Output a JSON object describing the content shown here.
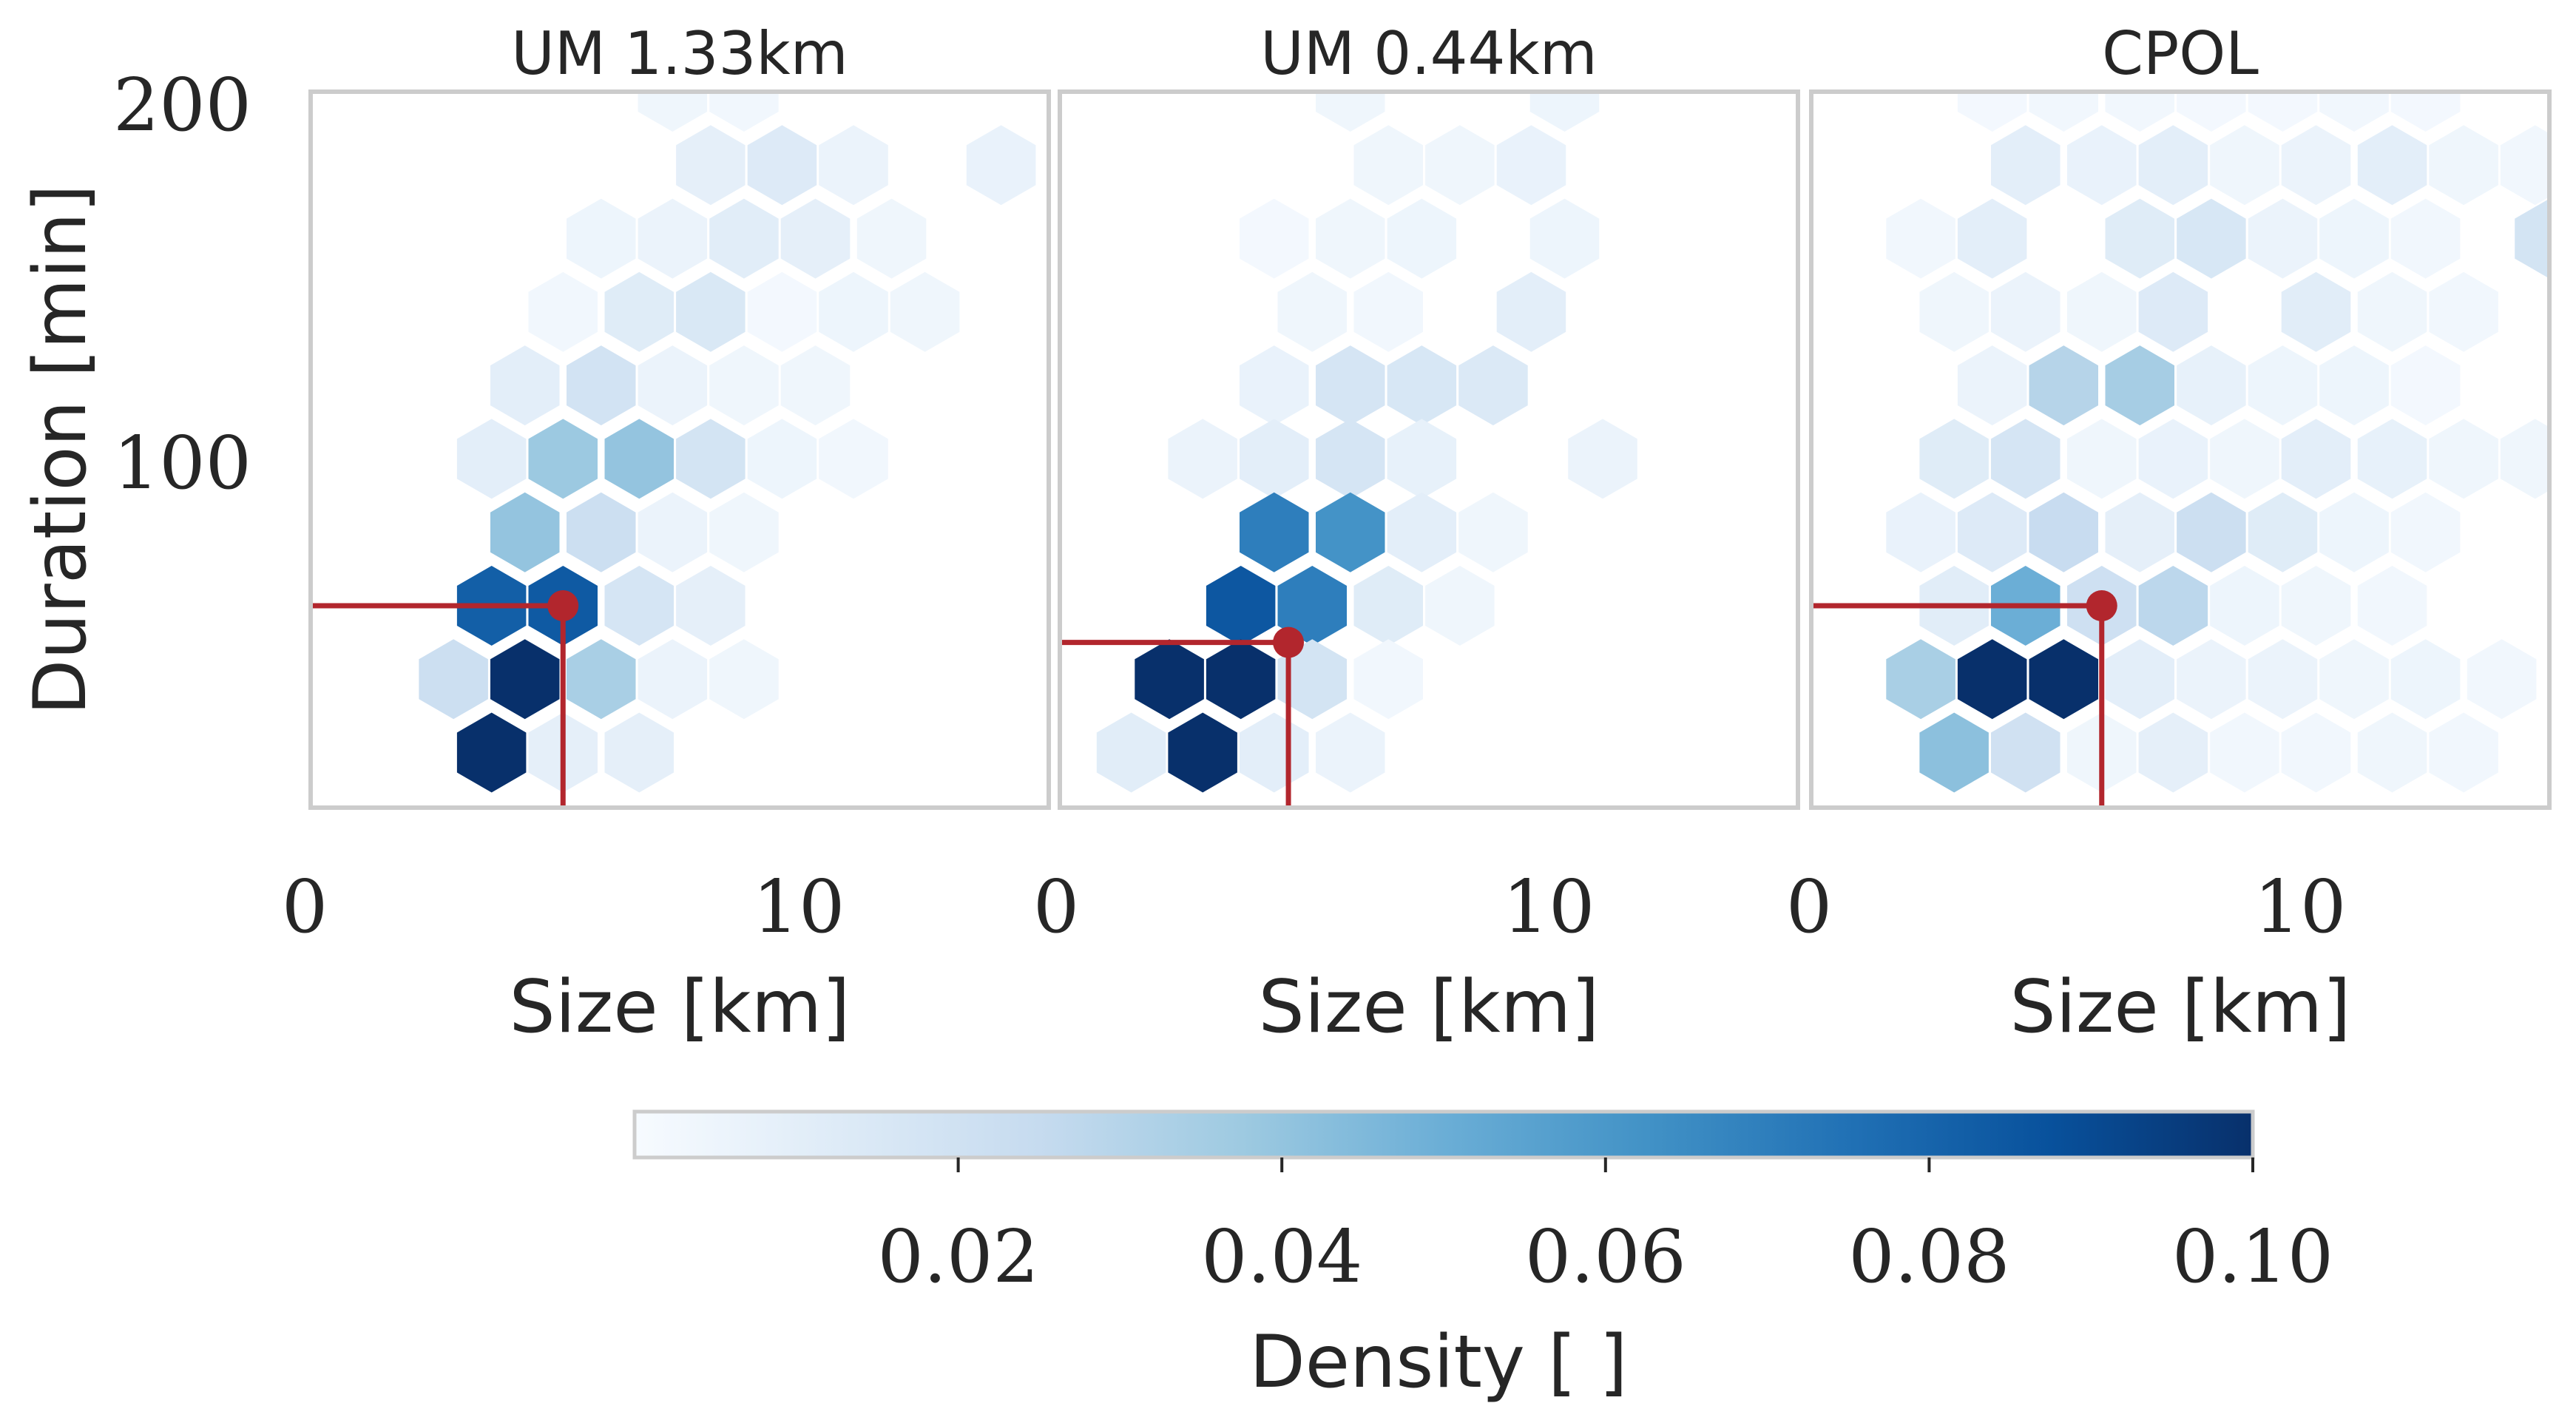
{
  "chart_data": {
    "type": "heatmap",
    "subtype": "hexbin",
    "colormap": "Blues",
    "grid": false,
    "ylabel": "Duration [min]",
    "xlabel": "Size [km]",
    "xlim": [
      0,
      15.5
    ],
    "ylim": [
      5,
      200
    ],
    "y_ticks": [
      200,
      100
    ],
    "x_ticks": [
      0,
      10
    ],
    "colorbar": {
      "label": "Density [ ]",
      "range": [
        0.0,
        0.1
      ],
      "ticks": [
        "0.02",
        "0.04",
        "0.06",
        "0.08",
        "0.10"
      ],
      "stops": [
        "#f7fbff",
        "#deebf7",
        "#c6dbef",
        "#9ecae1",
        "#6baed6",
        "#4292c6",
        "#2171b5",
        "#08519c",
        "#08306b"
      ],
      "placement": "bottom"
    },
    "marker_color": "#b2262d",
    "panels": [
      {
        "title": "UM 1.33km",
        "median": {
          "size": 5.3,
          "duration": 60
        },
        "cells": [
          [
            7.6,
            200,
            0.004
          ],
          [
            9.1,
            200,
            0.003
          ],
          [
            8.4,
            180,
            0.009
          ],
          [
            9.9,
            180,
            0.013
          ],
          [
            11.4,
            180,
            0.006
          ],
          [
            14.5,
            180,
            0.007
          ],
          [
            6.1,
            160,
            0.005
          ],
          [
            7.6,
            160,
            0.006
          ],
          [
            9.1,
            160,
            0.011
          ],
          [
            10.6,
            160,
            0.009
          ],
          [
            12.2,
            160,
            0.004
          ],
          [
            5.3,
            140,
            0.003
          ],
          [
            6.9,
            140,
            0.012
          ],
          [
            8.4,
            140,
            0.015
          ],
          [
            9.9,
            140,
            0.002
          ],
          [
            11.4,
            140,
            0.005
          ],
          [
            12.9,
            140,
            0.004
          ],
          [
            4.5,
            120,
            0.01
          ],
          [
            6.1,
            120,
            0.019
          ],
          [
            7.6,
            120,
            0.006
          ],
          [
            9.1,
            120,
            0.004
          ],
          [
            10.6,
            120,
            0.004
          ],
          [
            3.8,
            100,
            0.01
          ],
          [
            5.3,
            100,
            0.038
          ],
          [
            6.9,
            100,
            0.04
          ],
          [
            8.4,
            100,
            0.018
          ],
          [
            9.9,
            100,
            0.005
          ],
          [
            11.4,
            100,
            0.003
          ],
          [
            4.5,
            80,
            0.04
          ],
          [
            6.1,
            80,
            0.022
          ],
          [
            7.6,
            80,
            0.006
          ],
          [
            9.1,
            80,
            0.004
          ],
          [
            3.8,
            60,
            0.082
          ],
          [
            5.3,
            60,
            0.084
          ],
          [
            6.9,
            60,
            0.017
          ],
          [
            8.4,
            60,
            0.009
          ],
          [
            3.0,
            40,
            0.022
          ],
          [
            4.5,
            40,
            0.1
          ],
          [
            6.1,
            40,
            0.034
          ],
          [
            7.6,
            40,
            0.006
          ],
          [
            9.1,
            40,
            0.004
          ],
          [
            3.8,
            20,
            0.1
          ],
          [
            5.3,
            20,
            0.009
          ],
          [
            6.9,
            20,
            0.009
          ]
        ]
      },
      {
        "title": "UM 0.44km",
        "median": {
          "size": 4.8,
          "duration": 50
        },
        "cells": [
          [
            6.1,
            200,
            0.004
          ],
          [
            10.6,
            200,
            0.005
          ],
          [
            6.9,
            180,
            0.004
          ],
          [
            8.4,
            180,
            0.004
          ],
          [
            9.9,
            180,
            0.007
          ],
          [
            4.5,
            160,
            0.002
          ],
          [
            6.1,
            160,
            0.004
          ],
          [
            7.6,
            160,
            0.005
          ],
          [
            10.6,
            160,
            0.005
          ],
          [
            5.3,
            140,
            0.004
          ],
          [
            6.9,
            140,
            0.003
          ],
          [
            9.9,
            140,
            0.01
          ],
          [
            4.5,
            120,
            0.007
          ],
          [
            6.1,
            120,
            0.017
          ],
          [
            7.6,
            120,
            0.016
          ],
          [
            9.1,
            120,
            0.014
          ],
          [
            3.0,
            100,
            0.006
          ],
          [
            4.5,
            100,
            0.01
          ],
          [
            6.1,
            100,
            0.017
          ],
          [
            7.6,
            100,
            0.008
          ],
          [
            11.4,
            100,
            0.006
          ],
          [
            4.5,
            80,
            0.07
          ],
          [
            6.1,
            80,
            0.062
          ],
          [
            7.6,
            80,
            0.01
          ],
          [
            9.1,
            80,
            0.004
          ],
          [
            3.8,
            60,
            0.085
          ],
          [
            5.3,
            60,
            0.07
          ],
          [
            6.9,
            60,
            0.012
          ],
          [
            8.4,
            60,
            0.004
          ],
          [
            2.3,
            40,
            0.1
          ],
          [
            3.8,
            40,
            0.1
          ],
          [
            5.3,
            40,
            0.018
          ],
          [
            6.9,
            40,
            0.003
          ],
          [
            1.5,
            20,
            0.011
          ],
          [
            3.0,
            20,
            0.1
          ],
          [
            4.5,
            20,
            0.01
          ],
          [
            6.1,
            20,
            0.006
          ]
        ]
      },
      {
        "title": "CPOL",
        "median": {
          "size": 6.1,
          "duration": 60
        },
        "cells": [
          [
            3.8,
            200,
            0.002
          ],
          [
            5.3,
            200,
            0.003
          ],
          [
            6.9,
            200,
            0.003
          ],
          [
            8.4,
            200,
            0.002
          ],
          [
            9.9,
            200,
            0.002
          ],
          [
            11.4,
            200,
            0.003
          ],
          [
            12.9,
            200,
            0.002
          ],
          [
            4.5,
            180,
            0.01
          ],
          [
            6.1,
            180,
            0.007
          ],
          [
            7.6,
            180,
            0.01
          ],
          [
            9.1,
            180,
            0.004
          ],
          [
            10.6,
            180,
            0.006
          ],
          [
            12.2,
            180,
            0.01
          ],
          [
            13.7,
            180,
            0.004
          ],
          [
            15.2,
            180,
            0.003
          ],
          [
            2.3,
            160,
            0.003
          ],
          [
            3.8,
            160,
            0.01
          ],
          [
            6.9,
            160,
            0.012
          ],
          [
            8.4,
            160,
            0.016
          ],
          [
            9.9,
            160,
            0.006
          ],
          [
            11.4,
            160,
            0.005
          ],
          [
            12.9,
            160,
            0.003
          ],
          [
            15.5,
            160,
            0.018
          ],
          [
            3.0,
            140,
            0.004
          ],
          [
            4.5,
            140,
            0.006
          ],
          [
            6.1,
            140,
            0.004
          ],
          [
            7.6,
            140,
            0.013
          ],
          [
            10.6,
            140,
            0.011
          ],
          [
            12.2,
            140,
            0.004
          ],
          [
            13.7,
            140,
            0.003
          ],
          [
            3.8,
            120,
            0.006
          ],
          [
            5.3,
            120,
            0.03
          ],
          [
            6.9,
            120,
            0.035
          ],
          [
            8.4,
            120,
            0.008
          ],
          [
            9.9,
            120,
            0.005
          ],
          [
            11.4,
            120,
            0.005
          ],
          [
            12.9,
            120,
            0.002
          ],
          [
            3.0,
            100,
            0.012
          ],
          [
            4.5,
            100,
            0.017
          ],
          [
            6.1,
            100,
            0.004
          ],
          [
            7.6,
            100,
            0.007
          ],
          [
            9.1,
            100,
            0.004
          ],
          [
            10.6,
            100,
            0.01
          ],
          [
            12.2,
            100,
            0.008
          ],
          [
            13.7,
            100,
            0.004
          ],
          [
            15.2,
            100,
            0.004
          ],
          [
            2.3,
            80,
            0.007
          ],
          [
            3.8,
            80,
            0.013
          ],
          [
            5.3,
            80,
            0.024
          ],
          [
            6.9,
            80,
            0.009
          ],
          [
            8.4,
            80,
            0.022
          ],
          [
            9.9,
            80,
            0.012
          ],
          [
            11.4,
            80,
            0.005
          ],
          [
            12.9,
            80,
            0.003
          ],
          [
            3.0,
            60,
            0.011
          ],
          [
            4.5,
            60,
            0.05
          ],
          [
            6.1,
            60,
            0.021
          ],
          [
            7.6,
            60,
            0.028
          ],
          [
            9.1,
            60,
            0.005
          ],
          [
            10.6,
            60,
            0.004
          ],
          [
            12.2,
            60,
            0.003
          ],
          [
            2.3,
            40,
            0.034
          ],
          [
            3.8,
            40,
            0.1
          ],
          [
            5.3,
            40,
            0.1
          ],
          [
            6.9,
            40,
            0.01
          ],
          [
            8.4,
            40,
            0.006
          ],
          [
            9.9,
            40,
            0.006
          ],
          [
            11.4,
            40,
            0.004
          ],
          [
            12.9,
            40,
            0.005
          ],
          [
            14.5,
            40,
            0.003
          ],
          [
            3.0,
            20,
            0.042
          ],
          [
            4.5,
            20,
            0.02
          ],
          [
            6.1,
            20,
            0.004
          ],
          [
            7.6,
            20,
            0.009
          ],
          [
            9.1,
            20,
            0.003
          ],
          [
            10.6,
            20,
            0.003
          ],
          [
            12.2,
            20,
            0.004
          ],
          [
            13.7,
            20,
            0.003
          ]
        ]
      }
    ]
  }
}
